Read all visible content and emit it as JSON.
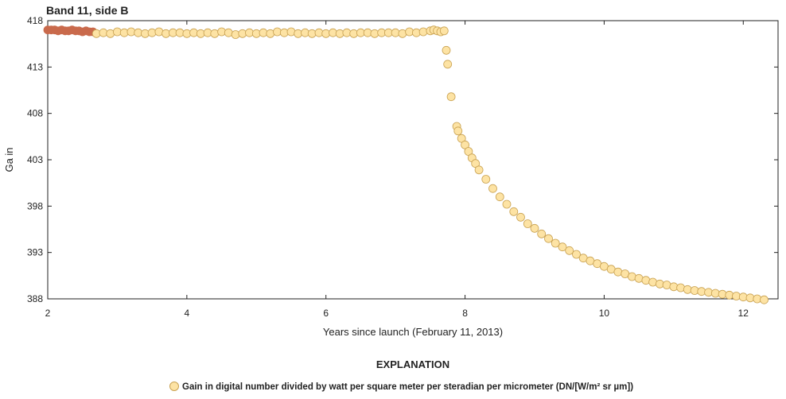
{
  "chart_data": {
    "type": "scatter",
    "title": "Band 11, side B",
    "xlabel": "Years since launch (February 11, 2013)",
    "ylabel": "Ga in",
    "xlim": [
      2,
      12.5
    ],
    "ylim": [
      388,
      418
    ],
    "xticks": [
      2,
      4,
      6,
      8,
      10,
      12
    ],
    "yticks": [
      388,
      393,
      398,
      403,
      408,
      413,
      418
    ],
    "grid": false,
    "legend_heading": "EXPLANATION",
    "legend_position": "bottom-center",
    "series": [
      {
        "name": "Gain in digital number divided by watt per square meter per steradian per micrometer (DN/[W/m² sr µm])",
        "marker_fill": "#fde3a4",
        "marker_stroke": "#c9a252",
        "dense_fill": "#c96a4c",
        "x": [
          2.0,
          2.05,
          2.1,
          2.15,
          2.2,
          2.25,
          2.3,
          2.35,
          2.4,
          2.45,
          2.5,
          2.55,
          2.6,
          2.65,
          2.7,
          2.8,
          2.9,
          3.0,
          3.1,
          3.2,
          3.3,
          3.4,
          3.5,
          3.6,
          3.7,
          3.8,
          3.9,
          4.0,
          4.1,
          4.2,
          4.3,
          4.4,
          4.5,
          4.6,
          4.7,
          4.8,
          4.9,
          5.0,
          5.1,
          5.2,
          5.3,
          5.4,
          5.5,
          5.6,
          5.7,
          5.8,
          5.9,
          6.0,
          6.1,
          6.2,
          6.3,
          6.4,
          6.5,
          6.6,
          6.7,
          6.8,
          6.9,
          7.0,
          7.1,
          7.2,
          7.3,
          7.4,
          7.5,
          7.55,
          7.6,
          7.65,
          7.7,
          7.73,
          7.75,
          7.8,
          7.88,
          7.9,
          7.95,
          8.0,
          8.05,
          8.1,
          8.15,
          8.2,
          8.3,
          8.4,
          8.5,
          8.6,
          8.7,
          8.8,
          8.9,
          9.0,
          9.1,
          9.2,
          9.3,
          9.4,
          9.5,
          9.6,
          9.7,
          9.8,
          9.9,
          10.0,
          10.1,
          10.2,
          10.3,
          10.4,
          10.5,
          10.6,
          10.7,
          10.8,
          10.9,
          11.0,
          11.1,
          11.2,
          11.3,
          11.4,
          11.5,
          11.6,
          11.7,
          11.8,
          11.9,
          12.0,
          12.1,
          12.2,
          12.3
        ],
        "y": [
          417.0,
          417.0,
          417.0,
          416.9,
          417.0,
          416.9,
          416.9,
          417.0,
          416.9,
          416.9,
          416.8,
          416.9,
          416.8,
          416.8,
          416.6,
          416.7,
          416.6,
          416.8,
          416.7,
          416.8,
          416.7,
          416.6,
          416.7,
          416.8,
          416.6,
          416.7,
          416.7,
          416.6,
          416.7,
          416.6,
          416.7,
          416.6,
          416.8,
          416.7,
          416.5,
          416.6,
          416.7,
          416.6,
          416.7,
          416.6,
          416.8,
          416.7,
          416.8,
          416.6,
          416.7,
          416.6,
          416.7,
          416.6,
          416.7,
          416.6,
          416.7,
          416.6,
          416.7,
          416.7,
          416.6,
          416.7,
          416.7,
          416.7,
          416.6,
          416.8,
          416.7,
          416.8,
          416.9,
          417.0,
          416.9,
          416.8,
          416.9,
          414.8,
          413.3,
          409.8,
          406.6,
          406.1,
          405.3,
          404.6,
          403.9,
          403.2,
          402.6,
          401.9,
          400.9,
          399.9,
          399.0,
          398.2,
          397.4,
          396.8,
          396.1,
          395.6,
          395.0,
          394.5,
          394.0,
          393.6,
          393.2,
          392.8,
          392.4,
          392.1,
          391.8,
          391.5,
          391.2,
          390.9,
          390.7,
          390.4,
          390.2,
          390.0,
          389.8,
          389.6,
          389.5,
          389.3,
          389.2,
          389.0,
          388.9,
          388.8,
          388.7,
          388.6,
          388.5,
          388.4,
          388.3,
          388.2,
          388.1,
          388.0,
          387.9
        ]
      }
    ]
  }
}
